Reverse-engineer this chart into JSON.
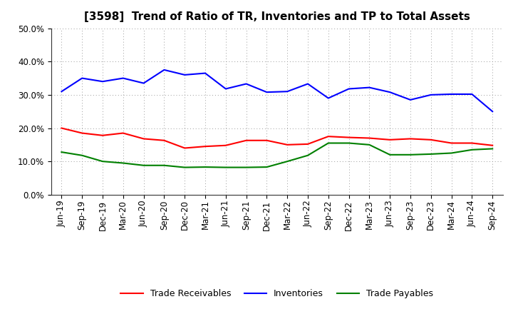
{
  "title": "[3598]  Trend of Ratio of TR, Inventories and TP to Total Assets",
  "x_labels": [
    "Jun-19",
    "Sep-19",
    "Dec-19",
    "Mar-20",
    "Jun-20",
    "Sep-20",
    "Dec-20",
    "Mar-21",
    "Jun-21",
    "Sep-21",
    "Dec-21",
    "Mar-22",
    "Jun-22",
    "Sep-22",
    "Dec-22",
    "Mar-23",
    "Jun-23",
    "Sep-23",
    "Dec-23",
    "Mar-24",
    "Jun-24",
    "Sep-24"
  ],
  "trade_receivables": [
    0.2,
    0.185,
    0.178,
    0.185,
    0.168,
    0.163,
    0.14,
    0.145,
    0.148,
    0.163,
    0.163,
    0.15,
    0.152,
    0.175,
    0.172,
    0.17,
    0.165,
    0.168,
    0.165,
    0.155,
    0.155,
    0.148
  ],
  "inventories": [
    0.31,
    0.35,
    0.34,
    0.35,
    0.335,
    0.375,
    0.36,
    0.365,
    0.318,
    0.333,
    0.308,
    0.31,
    0.333,
    0.29,
    0.318,
    0.322,
    0.308,
    0.285,
    0.3,
    0.302,
    0.302,
    0.25
  ],
  "trade_payables": [
    0.128,
    0.118,
    0.1,
    0.095,
    0.088,
    0.088,
    0.082,
    0.083,
    0.082,
    0.082,
    0.083,
    0.1,
    0.118,
    0.155,
    0.155,
    0.15,
    0.12,
    0.12,
    0.122,
    0.125,
    0.135,
    0.138
  ],
  "tr_color": "#ff0000",
  "inv_color": "#0000ff",
  "tp_color": "#008000",
  "ylim": [
    0.0,
    0.5
  ],
  "yticks": [
    0.0,
    0.1,
    0.2,
    0.3,
    0.4,
    0.5
  ],
  "background_color": "#ffffff",
  "grid_color": "#999999",
  "title_fontsize": 11,
  "tick_fontsize": 8.5,
  "legend_fontsize": 9
}
